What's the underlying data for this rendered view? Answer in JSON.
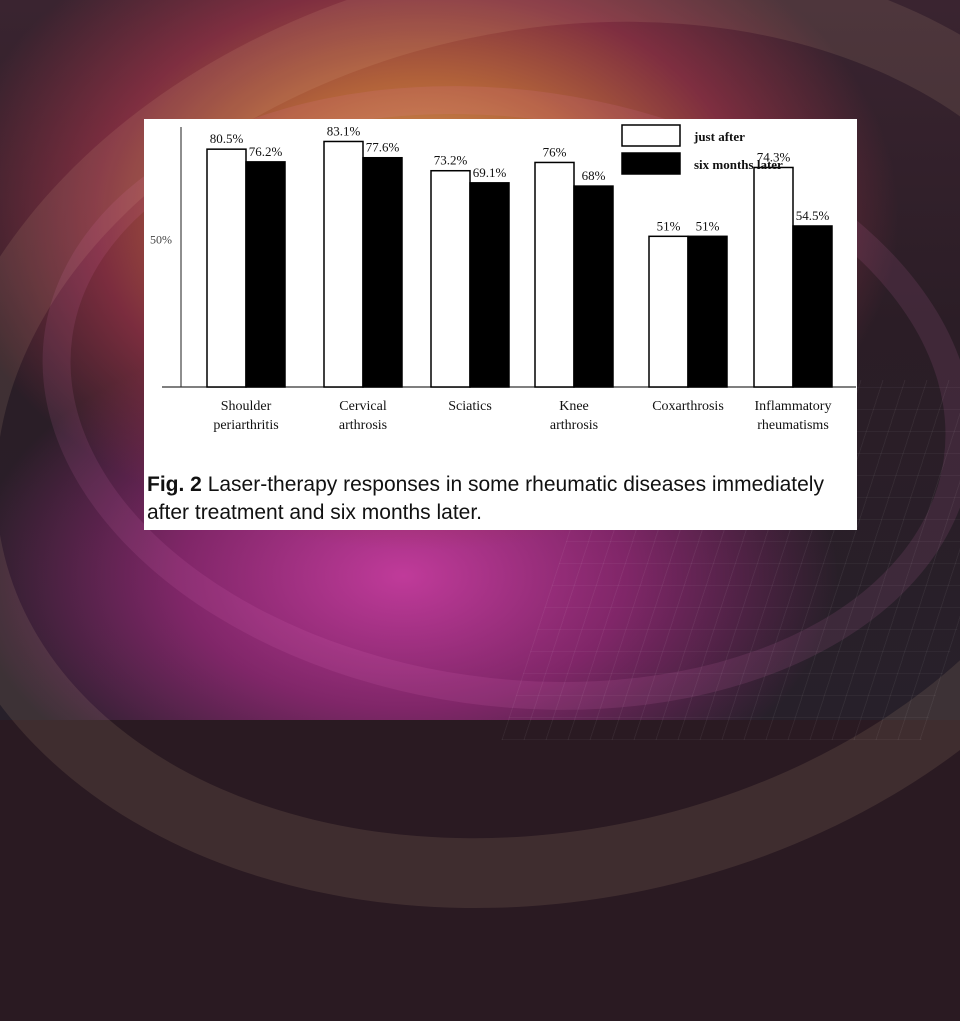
{
  "slide": {
    "caption_label": "Fig. 2",
    "caption_text": "Laser-therapy responses in some rheumatic diseases immediately after treatment and six months later."
  },
  "colors": {
    "just_after": "#ffffff",
    "six_months_later": "#000000"
  },
  "chart_data": {
    "type": "bar",
    "categories": [
      [
        "Shoulder",
        "periarthritis"
      ],
      [
        "Cervical",
        "arthrosis"
      ],
      [
        "Sciatics"
      ],
      [
        "Knee",
        "arthrosis"
      ],
      [
        "Coxarthrosis"
      ],
      [
        "Inflammatory",
        "rheumatisms"
      ]
    ],
    "series": [
      {
        "name": "just after",
        "values": [
          80.5,
          83.1,
          73.2,
          76,
          51,
          74.3
        ],
        "labels": [
          "80.5%",
          "83.1%",
          "73.2%",
          "76%",
          "51%",
          "74.3%"
        ]
      },
      {
        "name": "six months later",
        "values": [
          76.2,
          77.6,
          69.1,
          68,
          51,
          54.5
        ],
        "labels": [
          "76.2%",
          "77.6%",
          "69.1%",
          "68%",
          "51%",
          "54.5%"
        ]
      }
    ],
    "y_ticks": [
      {
        "value": 50,
        "label": "50%"
      }
    ],
    "ylim": [
      0,
      88
    ],
    "legend_position": "top-right",
    "grid": false
  }
}
